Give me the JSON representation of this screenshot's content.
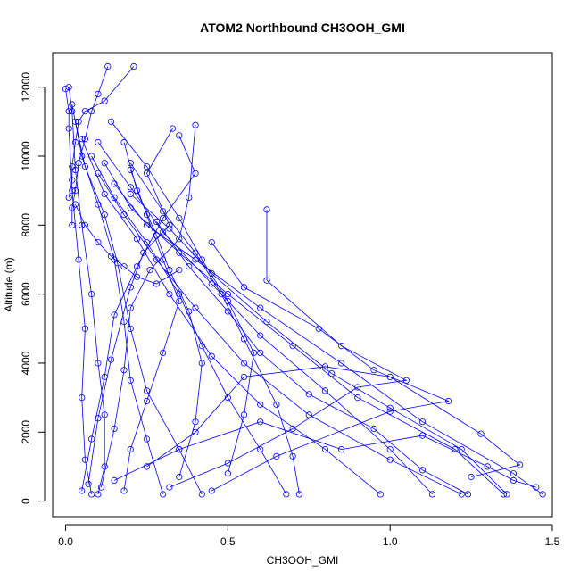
{
  "chart_data": {
    "type": "line",
    "title": "ATOM2 Northbound CH3OOH_GMI",
    "xlabel": "CH3OOH_GMI",
    "ylabel": "Altitude (m)",
    "xlim": [
      -0.04,
      1.5
    ],
    "ylim": [
      -450,
      13000
    ],
    "x_ticks": [
      0.0,
      0.5,
      1.0,
      1.5
    ],
    "x_tick_labels": [
      "0.0",
      "0.5",
      "1.0",
      "1.5"
    ],
    "y_ticks": [
      0,
      2000,
      4000,
      6000,
      8000,
      10000,
      12000
    ],
    "y_tick_labels": [
      "0",
      "2000",
      "4000",
      "6000",
      "8000",
      "10000",
      "12000"
    ],
    "grid": false,
    "legend": "none",
    "series_color": "#0000ff",
    "marker": "open-circle",
    "series": [
      {
        "profiles": [
          [
            [
              0.08,
              200
            ],
            [
              0.06,
              1200
            ],
            [
              0.05,
              3000
            ],
            [
              0.06,
              5000
            ],
            [
              0.04,
              7000
            ],
            [
              0.02,
              9000
            ],
            [
              0.01,
              10800
            ],
            [
              0.01,
              11300
            ],
            [
              0.0,
              11950
            ]
          ],
          [
            [
              0.1,
              200
            ],
            [
              0.12,
              1000
            ],
            [
              0.12,
              2500
            ],
            [
              0.1,
              4000
            ],
            [
              0.08,
              6000
            ],
            [
              0.05,
              8000
            ],
            [
              0.03,
              9600
            ],
            [
              0.02,
              11300
            ],
            [
              0.01,
              12000
            ]
          ],
          [
            [
              0.3,
              200
            ],
            [
              0.25,
              1800
            ],
            [
              0.2,
              3500
            ],
            [
              0.18,
              5200
            ],
            [
              0.15,
              7000
            ],
            [
              0.1,
              8600
            ],
            [
              0.05,
              10000
            ],
            [
              0.02,
              11500
            ]
          ],
          [
            [
              0.42,
              200
            ],
            [
              0.35,
              1500
            ],
            [
              0.25,
              3200
            ],
            [
              0.2,
              5000
            ],
            [
              0.16,
              6900
            ],
            [
              0.12,
              8300
            ],
            [
              0.06,
              9700
            ],
            [
              0.03,
              11000
            ]
          ],
          [
            [
              0.68,
              200
            ],
            [
              0.6,
              1500
            ],
            [
              0.5,
              3000
            ],
            [
              0.42,
              4500
            ],
            [
              0.35,
              6000
            ],
            [
              0.25,
              7500
            ],
            [
              0.15,
              8800
            ],
            [
              0.08,
              10000
            ]
          ],
          [
            [
              0.97,
              200
            ],
            [
              0.8,
              1500
            ],
            [
              0.6,
              2800
            ],
            [
              0.45,
              4200
            ],
            [
              0.32,
              6000
            ],
            [
              0.22,
              7600
            ],
            [
              0.12,
              8900
            ],
            [
              0.05,
              10500
            ]
          ],
          [
            [
              1.22,
              200
            ],
            [
              1.0,
              1200
            ],
            [
              0.75,
              2500
            ],
            [
              0.55,
              4000
            ],
            [
              0.4,
              5600
            ],
            [
              0.28,
              7000
            ],
            [
              0.18,
              8300
            ],
            [
              0.1,
              9500
            ]
          ],
          [
            [
              1.35,
              200
            ],
            [
              1.2,
              1500
            ],
            [
              0.9,
              3000
            ],
            [
              0.7,
              4500
            ],
            [
              0.5,
              6000
            ],
            [
              0.35,
              7200
            ],
            [
              0.2,
              8500
            ],
            [
              0.12,
              9800
            ]
          ],
          [
            [
              1.47,
              200
            ],
            [
              1.38,
              800
            ],
            [
              1.1,
              2300
            ],
            [
              0.85,
              4000
            ],
            [
              0.6,
              5600
            ],
            [
              0.4,
              7000
            ],
            [
              0.25,
              8000
            ],
            [
              0.15,
              9200
            ]
          ],
          [
            [
              1.13,
              200
            ],
            [
              1.0,
              1500
            ],
            [
              0.8,
              3200
            ],
            [
              0.6,
              4800
            ],
            [
              0.45,
              6300
            ],
            [
              0.3,
              7800
            ],
            [
              0.2,
              9100
            ],
            [
              0.1,
              10400
            ]
          ],
          [
            [
              0.05,
              300
            ],
            [
              0.08,
              1800
            ],
            [
              0.12,
              3600
            ],
            [
              0.15,
              5400
            ],
            [
              0.22,
              6800
            ],
            [
              0.3,
              8200
            ],
            [
              0.4,
              9500
            ],
            [
              0.35,
              10600
            ]
          ],
          [
            [
              0.32,
              400
            ],
            [
              0.5,
              1100
            ],
            [
              0.7,
              2100
            ],
            [
              0.9,
              3300
            ],
            [
              1.05,
              3500
            ],
            [
              0.85,
              4500
            ],
            [
              0.62,
              6400
            ],
            [
              0.62,
              8450
            ]
          ],
          [
            [
              0.45,
              300
            ],
            [
              0.65,
              1300
            ],
            [
              1.0,
              2600
            ],
            [
              1.18,
              2900
            ],
            [
              0.95,
              3800
            ],
            [
              0.78,
              5000
            ],
            [
              0.55,
              6200
            ],
            [
              0.45,
              7500
            ]
          ],
          [
            [
              0.25,
              1000
            ],
            [
              0.4,
              2000
            ],
            [
              0.55,
              3600
            ],
            [
              0.8,
              3900
            ],
            [
              1.0,
              3600
            ],
            [
              1.28,
              1950
            ],
            [
              1.4,
              1050
            ],
            [
              1.25,
              700
            ]
          ],
          [
            [
              0.15,
              600
            ],
            [
              0.35,
              1500
            ],
            [
              0.6,
              2300
            ],
            [
              0.85,
              1500
            ],
            [
              1.1,
              1900
            ],
            [
              1.3,
              1000
            ],
            [
              1.38,
              600
            ],
            [
              1.45,
              400
            ]
          ],
          [
            [
              0.18,
              300
            ],
            [
              0.2,
              1500
            ],
            [
              0.25,
              2900
            ],
            [
              0.3,
              4300
            ],
            [
              0.35,
              5800
            ],
            [
              0.3,
              7000
            ],
            [
              0.25,
              8300
            ],
            [
              0.2,
              9600
            ]
          ],
          [
            [
              0.11,
              400
            ],
            [
              0.15,
              2100
            ],
            [
              0.18,
              3800
            ],
            [
              0.2,
              5600
            ],
            [
              0.26,
              6700
            ],
            [
              0.35,
              7600
            ],
            [
              0.38,
              8800
            ],
            [
              0.4,
              10900
            ]
          ],
          [
            [
              0.07,
              500
            ],
            [
              0.1,
              2400
            ],
            [
              0.14,
              4100
            ],
            [
              0.2,
              6200
            ],
            [
              0.24,
              7200
            ],
            [
              0.32,
              8000
            ],
            [
              0.25,
              9500
            ],
            [
              0.33,
              10800
            ]
          ],
          [
            [
              0.35,
              700
            ],
            [
              0.4,
              2300
            ],
            [
              0.42,
              4000
            ],
            [
              0.38,
              5500
            ],
            [
              0.32,
              6700
            ],
            [
              0.28,
              7700
            ],
            [
              0.22,
              9000
            ],
            [
              0.18,
              10400
            ]
          ],
          [
            [
              0.5,
              800
            ],
            [
              0.55,
              2500
            ],
            [
              0.58,
              4300
            ],
            [
              0.5,
              5800
            ],
            [
              0.42,
              7000
            ],
            [
              0.35,
              8200
            ],
            [
              0.25,
              9700
            ],
            [
              0.14,
              11000
            ]
          ],
          [
            [
              0.72,
              200
            ],
            [
              0.7,
              1300
            ],
            [
              0.65,
              2800
            ],
            [
              0.55,
              4700
            ],
            [
              0.48,
              6000
            ],
            [
              0.4,
              7200
            ],
            [
              0.3,
              8400
            ],
            [
              0.2,
              9800
            ]
          ],
          [
            [
              1.24,
              200
            ],
            [
              1.1,
              900
            ],
            [
              0.95,
              2100
            ],
            [
              0.75,
              3100
            ],
            [
              0.6,
              4300
            ],
            [
              0.5,
              5500
            ],
            [
              0.38,
              6800
            ],
            [
              0.28,
              8100
            ]
          ],
          [
            [
              1.36,
              200
            ],
            [
              1.22,
              1500
            ],
            [
              1.0,
              2700
            ],
            [
              0.82,
              3700
            ],
            [
              0.62,
              5200
            ],
            [
              0.45,
              6600
            ],
            [
              0.32,
              7900
            ],
            [
              0.2,
              8900
            ]
          ],
          [
            [
              0.03,
              8600
            ],
            [
              0.06,
              8000
            ],
            [
              0.1,
              7500
            ],
            [
              0.14,
              7100
            ],
            [
              0.18,
              6800
            ],
            [
              0.22,
              6500
            ],
            [
              0.28,
              6300
            ],
            [
              0.35,
              6700
            ]
          ],
          [
            [
              0.13,
              12600
            ],
            [
              0.1,
              11800
            ],
            [
              0.08,
              11300
            ],
            [
              0.06,
              10500
            ],
            [
              0.04,
              9800
            ],
            [
              0.03,
              9000
            ],
            [
              0.02,
              8500
            ],
            [
              0.02,
              8000
            ]
          ],
          [
            [
              0.21,
              12600
            ],
            [
              0.12,
              11600
            ],
            [
              0.06,
              11300
            ],
            [
              0.04,
              11000
            ],
            [
              0.03,
              10400
            ],
            [
              0.02,
              9700
            ],
            [
              0.02,
              9300
            ],
            [
              0.01,
              8800
            ]
          ]
        ]
      }
    ]
  }
}
